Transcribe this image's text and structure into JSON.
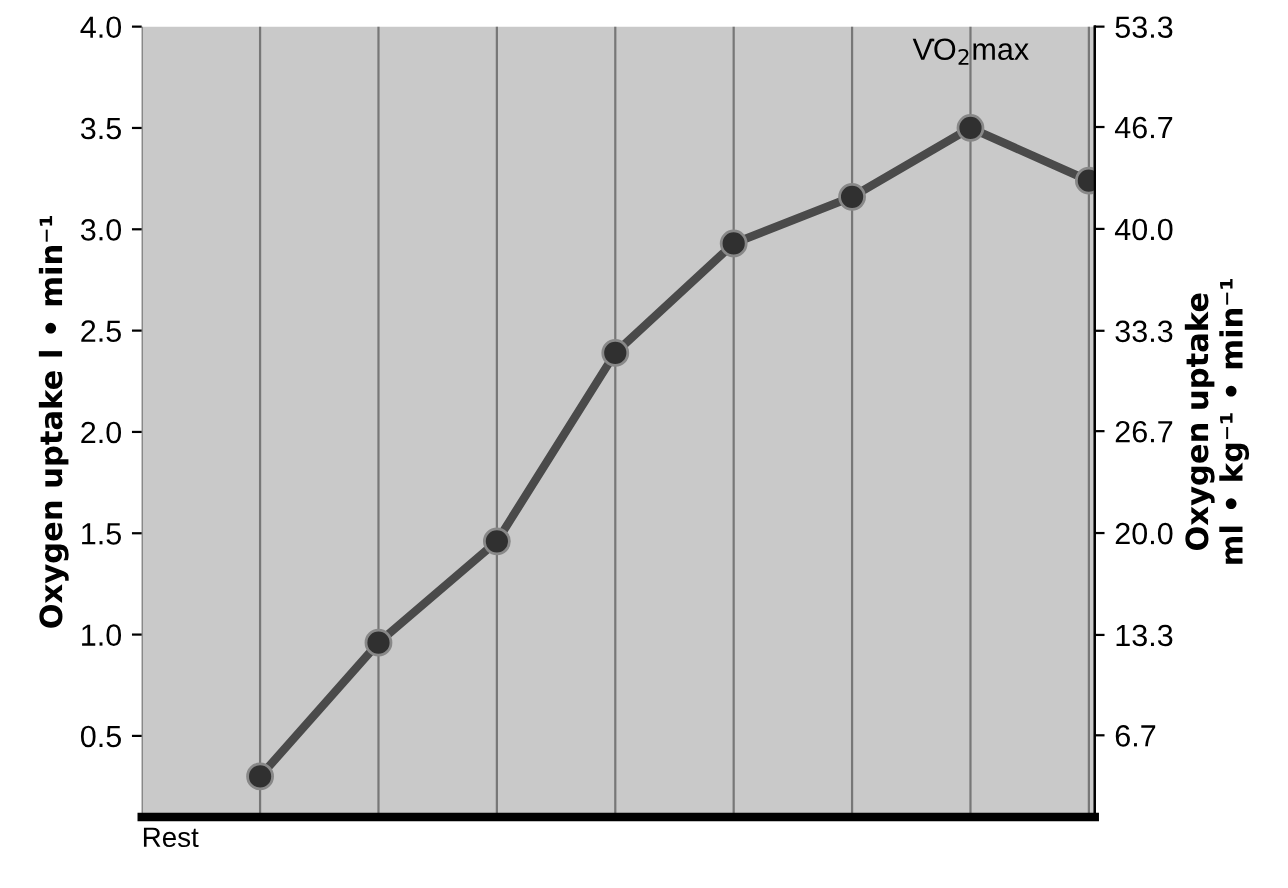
{
  "chart_data": {
    "type": "line",
    "categories": [
      "Rest",
      null,
      null,
      null,
      null,
      null,
      null,
      null,
      null
    ],
    "series": [
      {
        "color": "#4a4a4a",
        "values": [
          null,
          0.3,
          0.96,
          1.46,
          2.39,
          2.93,
          3.16,
          3.5,
          3.24
        ]
      }
    ],
    "ylabel": "Oxygen uptake l • min⁻¹",
    "y2label": "Oxygen uptake\nml • kg⁻¹ • min⁻¹",
    "ylim": [
      0.1,
      4.0
    ],
    "yticks": [
      0.5,
      {
        "value": 1,
        "label": "1.0"
      },
      1.5,
      {
        "value": 2,
        "label": "2.0"
      },
      2.5,
      {
        "value": 3,
        "label": "3.0"
      },
      3.5,
      {
        "value": 4,
        "label": "4.0"
      }
    ],
    "y2lim": [
      1.33,
      53.3
    ],
    "y2ticks": [
      6.7,
      13.3,
      {
        "value": 20,
        "label": "20.0"
      },
      26.7,
      33.3,
      {
        "value": 40,
        "label": "40.0"
      },
      46.7,
      53.3
    ],
    "annotations": [
      "V̇O$_{2}$max"
    ],
    "grid": "x",
    "marker": "circle",
    "line_style": "solid"
  }
}
